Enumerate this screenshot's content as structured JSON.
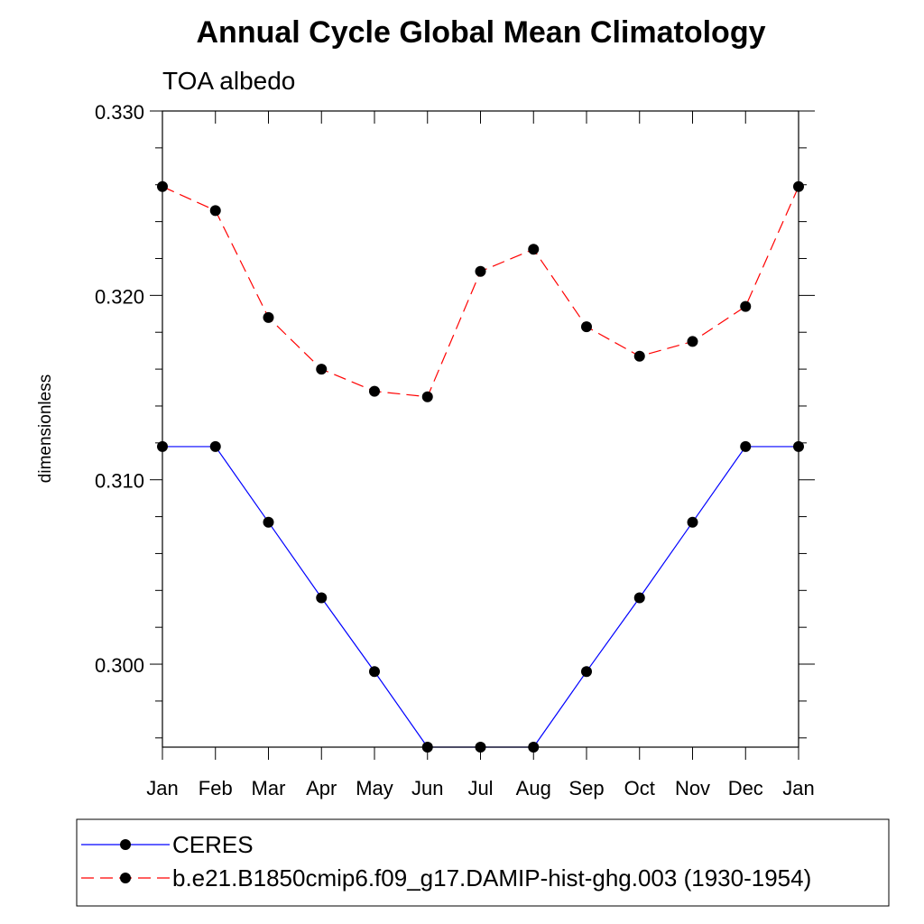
{
  "chart_data": {
    "type": "line",
    "title": "Annual Cycle Global Mean Climatology",
    "subtitle": "TOA albedo",
    "xlabel": "",
    "ylabel": "dimensionless",
    "categories": [
      "Jan",
      "Feb",
      "Mar",
      "Apr",
      "May",
      "Jun",
      "Jul",
      "Aug",
      "Sep",
      "Oct",
      "Nov",
      "Dec",
      "Jan"
    ],
    "ylim": [
      0.2955,
      0.33
    ],
    "yticks": [
      0.3,
      0.31,
      0.32,
      0.33
    ],
    "ytick_labels": [
      "0.300",
      "0.310",
      "0.320",
      "0.330"
    ],
    "grid": false,
    "legend_position": "bottom",
    "series": [
      {
        "name": "CERES",
        "color": "#0000ff",
        "dash": "solid",
        "values": [
          0.3118,
          0.3118,
          0.3077,
          0.3036,
          0.2996,
          0.2955,
          0.2955,
          0.2955,
          0.2996,
          0.3036,
          0.3077,
          0.3118,
          0.3118
        ]
      },
      {
        "name": "b.e21.B1850cmip6.f09_g17.DAMIP-hist-ghg.003 (1930-1954)",
        "color": "#ff0000",
        "dash": "dashed",
        "values": [
          0.3259,
          0.3246,
          0.3188,
          0.316,
          0.3148,
          0.3145,
          0.3213,
          0.3225,
          0.3183,
          0.3167,
          0.3175,
          0.3194,
          0.3259
        ]
      }
    ]
  }
}
